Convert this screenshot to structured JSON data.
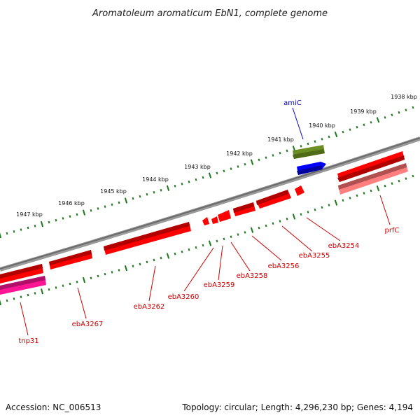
{
  "header": {
    "title": "Aromatoleum aromaticum EbN1, complete genome"
  },
  "footer": {
    "accession": "Accession: NC_006513",
    "topology": "Topology: circular; Length: 4,296,230 bp; Genes: 4,194"
  },
  "colors": {
    "backbone": "#808080",
    "tick": "#1a7a1a",
    "cds_red": "#ff0000",
    "cds_pink": "#ff7f7f",
    "amiC": "#0000ff",
    "olive": "#6b8e23",
    "tnp": "#ff1493",
    "label_red": "#cc0000",
    "label_blue": "#0000cc"
  },
  "ruler": {
    "outer_labels": [
      "1938 kbp",
      "1939 kbp",
      "1940 kbp",
      "1941 kbp",
      "1942 kbp",
      "1943 kbp",
      "1944 kbp",
      "1945 kbp",
      "1946 kbp",
      "1947 kbp"
    ]
  },
  "gene_labels": {
    "amiC": "amiC",
    "prfC": "prfC",
    "ebA3254": "ebA3254",
    "ebA3255": "ebA3255",
    "ebA3256": "ebA3256",
    "ebA3258": "ebA3258",
    "ebA3259": "ebA3259",
    "ebA3260": "ebA3260",
    "ebA3262": "ebA3262",
    "ebA3267": "ebA3267",
    "tnp31": "tnp31"
  }
}
